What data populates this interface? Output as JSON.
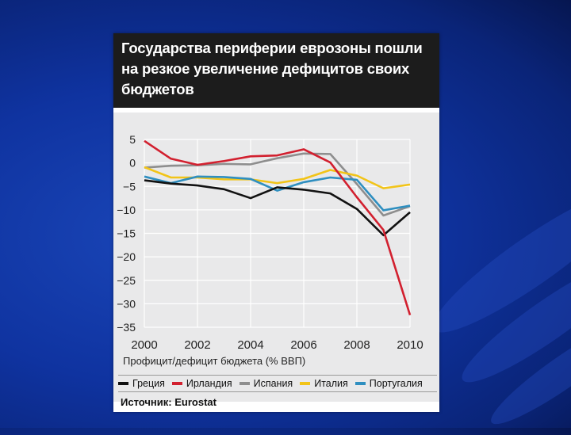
{
  "chart_data": {
    "type": "line",
    "title": "Государства периферии еврозоны пошли на резкое увеличение дефицитов своих бюджетов",
    "xlabel": "Профицит/дефицит бюджета (% ВВП)",
    "ylabel": "",
    "x": [
      2000,
      2001,
      2002,
      2003,
      2004,
      2005,
      2006,
      2007,
      2008,
      2009,
      2010
    ],
    "xticks": [
      "2000",
      "2002",
      "2004",
      "2006",
      "2008",
      "2010"
    ],
    "yticks": [
      "5",
      "0",
      "−5",
      "−10",
      "−15",
      "−20",
      "−25",
      "−30",
      "−35"
    ],
    "xlim": [
      2000,
      2010
    ],
    "ylim": [
      -35,
      5
    ],
    "grid": true,
    "legend_position": "bottom",
    "series": [
      {
        "name": "Греция",
        "color": "#111111",
        "values": [
          -3.7,
          -4.4,
          -4.8,
          -5.6,
          -7.5,
          -5.2,
          -5.7,
          -6.5,
          -9.8,
          -15.4,
          -10.5
        ]
      },
      {
        "name": "Ирландия",
        "color": "#d2202f",
        "values": [
          4.7,
          0.9,
          -0.4,
          0.4,
          1.4,
          1.6,
          2.9,
          0.1,
          -7.3,
          -14.3,
          -32.4
        ]
      },
      {
        "name": "Испания",
        "color": "#8e8e8e",
        "values": [
          -1.0,
          -0.6,
          -0.5,
          -0.2,
          -0.3,
          1.0,
          2.0,
          1.9,
          -4.5,
          -11.2,
          -9.2
        ]
      },
      {
        "name": "Италия",
        "color": "#f2c418",
        "values": [
          -0.9,
          -3.1,
          -3.1,
          -3.5,
          -3.5,
          -4.3,
          -3.4,
          -1.5,
          -2.7,
          -5.4,
          -4.6
        ]
      },
      {
        "name": "Португалия",
        "color": "#2f8fc0",
        "values": [
          -2.9,
          -4.3,
          -2.9,
          -3.0,
          -3.4,
          -5.9,
          -4.1,
          -3.1,
          -3.6,
          -10.1,
          -9.1
        ]
      }
    ]
  },
  "source_text": "Источник: Eurostat"
}
